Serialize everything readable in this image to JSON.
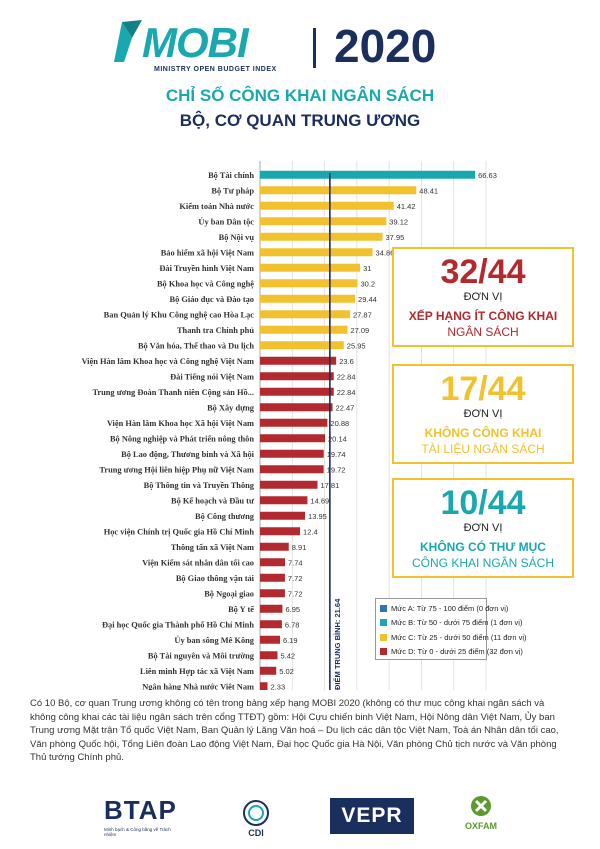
{
  "header": {
    "brand": "MOBI",
    "brand_tagline": "MINISTRY OPEN BUDGET INDEX",
    "year": "2020",
    "title_line1": "CHỈ SỐ CÔNG KHAI NGÂN SÁCH",
    "title_line2": "BỘ, CƠ QUAN TRUNG ƯƠNG"
  },
  "colors": {
    "teal": "#1aa8b0",
    "yellow": "#f2c12e",
    "red": "#b22a2e",
    "navy": "#1b2f5e",
    "blue": "#2e75b6",
    "gray": "#666666"
  },
  "stats": [
    {
      "number": "32/44",
      "unit": "ĐƠN VỊ",
      "line1": "XẾP HẠNG ÍT CÔNG KHAI",
      "line2": "NGÂN SÁCH",
      "color": "#b22a2e"
    },
    {
      "number": "17/44",
      "unit": "ĐƠN VỊ",
      "line1": "KHÔNG CÔNG KHAI",
      "line2": "TÀI LIỆU NGÂN SÁCH",
      "color": "#f2c12e"
    },
    {
      "number": "10/44",
      "unit": "ĐƠN VỊ",
      "line1": "KHÔNG CÓ THƯ MỤC",
      "line2": "CÔNG KHAI NGÂN SÁCH",
      "color": "#1aa8b0"
    }
  ],
  "legend": [
    {
      "label": "Mức A: Từ 75 - 100 điểm (0 đơn vị)",
      "color": "#2e75b6"
    },
    {
      "label": "Mức B: Từ 50 - dưới 75 điểm (1 đơn vị)",
      "color": "#1aa8b0"
    },
    {
      "label": "Mức C: Từ 25 - dưới 50 điểm (11 đơn vị)",
      "color": "#f2c12e"
    },
    {
      "label": "Mức D: Từ 0 - dưới 25 điểm (32 đơn vị)",
      "color": "#b22a2e"
    }
  ],
  "chart_data": {
    "type": "bar",
    "orientation": "horizontal",
    "xlim": [
      0,
      70
    ],
    "xticks": [
      0,
      10,
      20,
      30,
      40,
      50,
      60,
      70
    ],
    "grid": true,
    "average": {
      "value": 21.64,
      "label": "ĐIỂM TRUNG BÌNH: 21.64"
    },
    "categories": [
      "Bộ Tài chính",
      "Bộ Tư pháp",
      "Kiểm toán Nhà nước",
      "Ủy ban Dân tộc",
      "Bộ Nội vụ",
      "Bảo hiểm xã hội Việt Nam",
      "Đài Truyền hình Việt Nam",
      "Bộ Khoa học và Công nghệ",
      "Bộ Giáo dục và Đào tạo",
      "Ban Quản lý Khu Công nghệ cao Hòa Lạc",
      "Thanh tra Chính phủ",
      "Bộ Văn hóa, Thể thao và Du lịch",
      "Viện Hàn lâm Khoa học và Công nghệ Việt Nam",
      "Đài Tiếng nói Việt Nam",
      "Trung ương Đoàn Thanh niên Cộng sản Hồ...",
      "Bộ Xây dựng",
      "Viện Hàn lâm Khoa học Xã hội Việt Nam",
      "Bộ Nông nghiệp và Phát triển nông thôn",
      "Bộ Lao động, Thương binh và Xã hội",
      "Trung ương Hội liên hiệp Phụ nữ Việt Nam",
      "Bộ Thông tin và Truyền Thông",
      "Bộ Kế hoạch và Đầu tư",
      "Bộ Công thương",
      "Học viện Chính trị Quốc gia Hồ Chí Minh",
      "Thông tấn xã Việt Nam",
      "Viện Kiểm sát nhân dân tối cao",
      "Bộ Giao thông vận tải",
      "Bộ Ngoại giao",
      "Bộ Y tế",
      "Đại học Quốc gia Thành phố Hồ Chí Minh",
      "Ủy ban sông Mê Kông",
      "Bộ Tài nguyên và Môi trường",
      "Liên minh Hợp tác xã Việt Nam",
      "Ngân hàng Nhà nước Việt Nam"
    ],
    "values": [
      66.63,
      48.41,
      41.42,
      39.12,
      37.95,
      34.86,
      31,
      30.2,
      29.44,
      27.87,
      27.09,
      25.95,
      23.6,
      22.84,
      22.84,
      22.47,
      20.88,
      20.14,
      19.74,
      19.72,
      17.81,
      14.69,
      13.95,
      12.4,
      8.91,
      7.74,
      7.72,
      7.72,
      6.95,
      6.78,
      6.19,
      5.42,
      5.02,
      2.33
    ],
    "value_labels": [
      "66.63",
      "48.41",
      "41.42",
      "39.12",
      "37.95",
      "34.86",
      "31",
      "30.2",
      "29.44",
      "27.87",
      "27.09",
      "25.95",
      "23.6",
      "22.84",
      "22.84",
      "22.47",
      "20.88",
      "20.14",
      "19.74",
      "19.72",
      "17.81",
      "14.69",
      "13.95",
      "12.4",
      "8.91",
      "7.74",
      "7.72",
      "7.72",
      "6.95",
      "6.78",
      "6.19",
      "5.42",
      "5.02",
      "2.33"
    ]
  },
  "footnote": "Có 10 Bộ, cơ quan Trung ương không có tên trong bảng xếp hạng MOBI 2020 (không có thư mục công khai ngân sách và không công khai các tài liệu ngân sách trên cổng TTĐT) gồm: Hội Cựu chiến binh Việt Nam, Hội Nông dân Việt Nam, Ủy ban Trung ương Mặt trận Tổ quốc Việt Nam, Ban Quản lý Lăng Văn hoá – Du lịch các dân tộc Việt Nam, Toà án Nhân dân tối cao, Văn phòng Quốc hội, Tổng Liên đoàn Lao động Việt Nam, Đại học Quốc gia Hà Nội, Văn phòng Chủ tịch nước và Văn phòng Thủ tướng Chính phủ.",
  "logos": {
    "btap": "BTAP",
    "btap_sub": "Minh bạch & Công bằng về Trách nhiệm",
    "cdi": "CDI",
    "vepr": "VEPR",
    "oxfam": "OXFAM"
  }
}
